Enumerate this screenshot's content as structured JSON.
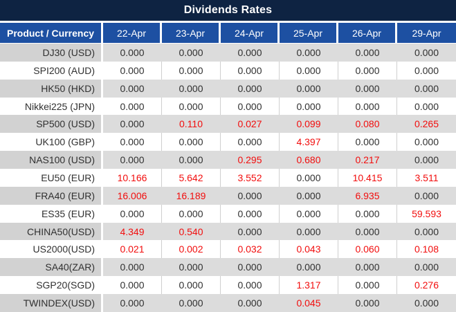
{
  "title": "Dividends Rates",
  "table": {
    "product_header": "Product / Currency",
    "date_headers": [
      "22-Apr",
      "23-Apr",
      "24-Apr",
      "25-Apr",
      "26-Apr",
      "29-Apr"
    ],
    "rows": [
      {
        "product": "DJ30 (USD)",
        "values": [
          "0.000",
          "0.000",
          "0.000",
          "0.000",
          "0.000",
          "0.000"
        ]
      },
      {
        "product": "SPI200 (AUD)",
        "values": [
          "0.000",
          "0.000",
          "0.000",
          "0.000",
          "0.000",
          "0.000"
        ]
      },
      {
        "product": "HK50 (HKD)",
        "values": [
          "0.000",
          "0.000",
          "0.000",
          "0.000",
          "0.000",
          "0.000"
        ]
      },
      {
        "product": "Nikkei225 (JPN)",
        "values": [
          "0.000",
          "0.000",
          "0.000",
          "0.000",
          "0.000",
          "0.000"
        ]
      },
      {
        "product": "SP500 (USD)",
        "values": [
          "0.000",
          "0.110",
          "0.027",
          "0.099",
          "0.080",
          "0.265"
        ]
      },
      {
        "product": "UK100 (GBP)",
        "values": [
          "0.000",
          "0.000",
          "0.000",
          "4.397",
          "0.000",
          "0.000"
        ]
      },
      {
        "product": "NAS100 (USD)",
        "values": [
          "0.000",
          "0.000",
          "0.295",
          "0.680",
          "0.217",
          "0.000"
        ]
      },
      {
        "product": "EU50 (EUR)",
        "values": [
          "10.166",
          "5.642",
          "3.552",
          "0.000",
          "10.415",
          "3.511"
        ]
      },
      {
        "product": "FRA40 (EUR)",
        "values": [
          "16.006",
          "16.189",
          "0.000",
          "0.000",
          "6.935",
          "0.000"
        ]
      },
      {
        "product": "ES35 (EUR)",
        "values": [
          "0.000",
          "0.000",
          "0.000",
          "0.000",
          "0.000",
          "59.593"
        ]
      },
      {
        "product": "CHINA50(USD)",
        "values": [
          "4.349",
          "0.540",
          "0.000",
          "0.000",
          "0.000",
          "0.000"
        ]
      },
      {
        "product": "US2000(USD)",
        "values": [
          "0.021",
          "0.002",
          "0.032",
          "0.043",
          "0.060",
          "0.108"
        ]
      },
      {
        "product": "SA40(ZAR)",
        "values": [
          "0.000",
          "0.000",
          "0.000",
          "0.000",
          "0.000",
          "0.000"
        ]
      },
      {
        "product": "SGP20(SGD)",
        "values": [
          "0.000",
          "0.000",
          "0.000",
          "1.317",
          "0.000",
          "0.276"
        ]
      },
      {
        "product": "TWINDEX(USD)",
        "values": [
          "0.000",
          "0.000",
          "0.000",
          "0.045",
          "0.000",
          "0.000"
        ]
      }
    ]
  },
  "colors": {
    "title_bg": "#0e2342",
    "header_bg": "#1d50a2",
    "alt_row_label_bg": "#d2d2d2",
    "alt_row_value_bg": "#dcdcdc",
    "zero_value_text": "#303030",
    "nonzero_value_text": "#f20d0d"
  }
}
